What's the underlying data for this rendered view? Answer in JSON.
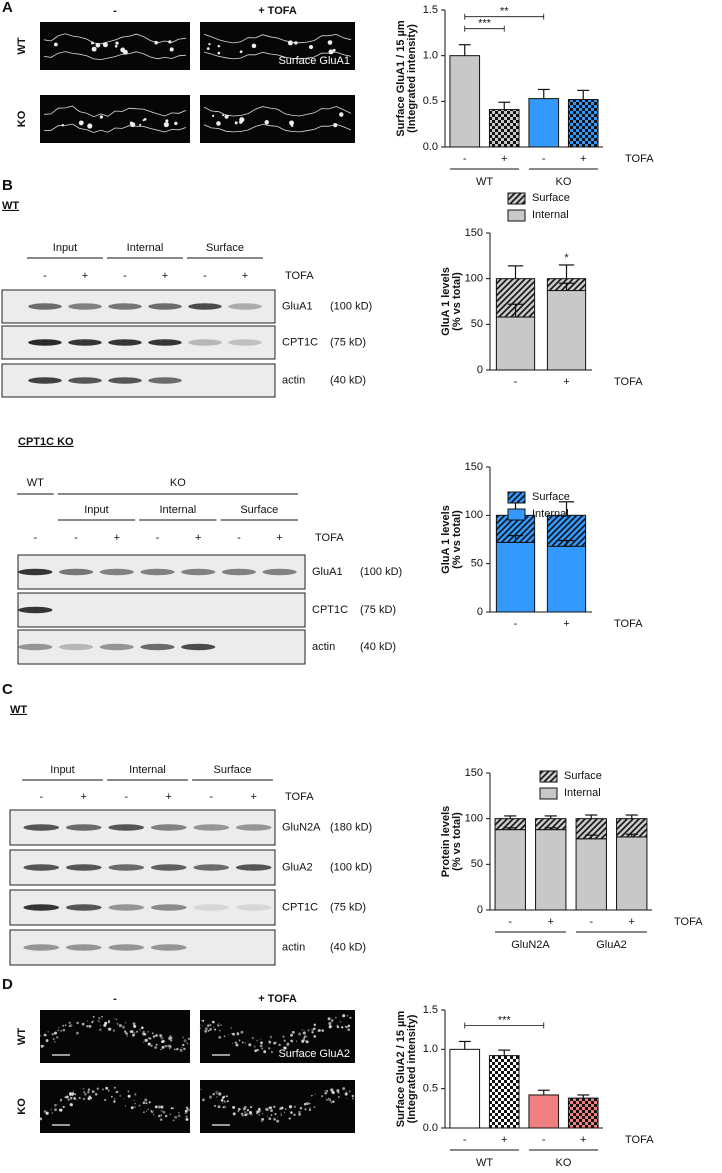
{
  "panels": {
    "A": {
      "letter": "A",
      "columns": [
        "-",
        "+ TOFA"
      ],
      "rows": [
        "WT",
        "KO"
      ],
      "overlay": "Surface GluA1"
    },
    "B": {
      "letter": "B",
      "wt": {
        "title": "WT",
        "groups": [
          "Input",
          "Internal",
          "Surface"
        ],
        "lanes": [
          "-",
          "+",
          "-",
          "+",
          "-",
          "+"
        ],
        "treatment": "TOFA",
        "bands": [
          [
            "GluA1",
            "(100 kD)"
          ],
          [
            "CPT1C",
            "(75 kD)"
          ],
          [
            "actin",
            "(40 kD)"
          ]
        ]
      },
      "ko": {
        "title": "CPT1C KO",
        "genotypes": [
          "WT",
          "KO"
        ],
        "groups": [
          "Input",
          "Internal",
          "Surface"
        ],
        "lanes": [
          "-",
          "-",
          "+",
          "-",
          "+",
          "-",
          "+"
        ],
        "treatment": "TOFA",
        "bands": [
          [
            "GluA1",
            "(100 kD)"
          ],
          [
            "CPT1C",
            "(75 kD)"
          ],
          [
            "actin",
            "(40 kD)"
          ]
        ]
      }
    },
    "C": {
      "letter": "C",
      "title": "WT",
      "groups": [
        "Input",
        "Internal",
        "Surface"
      ],
      "lanes": [
        "-",
        "+",
        "-",
        "+",
        "-",
        "+"
      ],
      "treatment": "TOFA",
      "bands": [
        [
          "GluN2A",
          "(180 kD)"
        ],
        [
          "GluA2",
          "(100 kD)"
        ],
        [
          "CPT1C",
          "(75 kD)"
        ],
        [
          "actin",
          "(40 kD)"
        ]
      ]
    },
    "D": {
      "letter": "D",
      "columns": [
        "-",
        "+ TOFA"
      ],
      "rows": [
        "WT",
        "KO"
      ],
      "overlay": "Surface GluA2"
    }
  },
  "chart_data": [
    {
      "type": "bar",
      "ylabel": [
        "Surface GluA1 / 15 µm",
        "(Integrated intensity)"
      ],
      "categories": [
        "-",
        "+",
        "-",
        "+"
      ],
      "groups": [
        "WT",
        "KO"
      ],
      "xlabel": "TOFA",
      "values": [
        1.0,
        0.41,
        0.53,
        0.52
      ],
      "errors": [
        0.12,
        0.08,
        0.1,
        0.1
      ],
      "colors": [
        "#c8c8c8",
        "#c8c8c8",
        "#3399ff",
        "#3399ff"
      ],
      "patterns": [
        "solid",
        "checker",
        "solid",
        "checker"
      ],
      "ylim": [
        0,
        1.5
      ],
      "yticks": [
        {
          "value": 0,
          "label": "0.0"
        },
        0.5,
        {
          "value": 1,
          "label": "1.0"
        },
        1.5
      ],
      "annotations": [
        {
          "text": "***",
          "bars": [
            0,
            1
          ]
        },
        {
          "text": "**",
          "bars": [
            0,
            2
          ]
        }
      ]
    },
    {
      "type": "stacked_bar",
      "ylabel": [
        "GluA 1 levels",
        "(% vs total)"
      ],
      "categories": [
        "-",
        "+"
      ],
      "xlabel": "TOFA",
      "series": [
        {
          "name": "Internal",
          "color": "#c8c8c8",
          "pattern": "solid",
          "values": [
            58,
            87
          ],
          "errors": [
            14,
            8
          ]
        },
        {
          "name": "Surface",
          "color": "#c8c8c8",
          "pattern": "hatch",
          "values": [
            42,
            13
          ],
          "errors": [
            14,
            15
          ]
        }
      ],
      "ylim": [
        0,
        150
      ],
      "yticks": [
        0,
        50,
        100,
        150
      ],
      "annotations": [
        {
          "text": "*",
          "bars": [
            1
          ]
        }
      ]
    },
    {
      "type": "stacked_bar",
      "ylabel": [
        "GluA 1 levels",
        "(% vs total)"
      ],
      "categories": [
        "-",
        "+"
      ],
      "xlabel": "TOFA",
      "series": [
        {
          "name": "Internal",
          "color": "#3399ff",
          "pattern": "solid",
          "values": [
            72,
            68
          ],
          "errors": [
            7,
            6
          ]
        },
        {
          "name": "Surface",
          "color": "#3399ff",
          "pattern": "hatch",
          "values": [
            28,
            32
          ],
          "errors": [
            16,
            14
          ]
        }
      ],
      "ylim": [
        0,
        150
      ],
      "yticks": [
        0,
        50,
        100,
        150
      ]
    },
    {
      "type": "stacked_bar",
      "ylabel": [
        "Protein levels",
        "(% vs total)"
      ],
      "categories": [
        "-",
        "+",
        "-",
        "+"
      ],
      "groups": [
        "GluN2A",
        "GluA2"
      ],
      "xlabel": "TOFA",
      "series": [
        {
          "name": "Internal",
          "color": "#c8c8c8",
          "pattern": "solid",
          "values": [
            88,
            88,
            78,
            80
          ],
          "errors": [
            2,
            2,
            4,
            3
          ]
        },
        {
          "name": "Surface",
          "color": "#c8c8c8",
          "pattern": "hatch",
          "values": [
            12,
            12,
            22,
            20
          ],
          "errors": [
            3,
            3,
            4,
            4
          ]
        }
      ],
      "ylim": [
        0,
        150
      ],
      "yticks": [
        0,
        50,
        100,
        150
      ]
    },
    {
      "type": "bar",
      "ylabel": [
        "Surface GluA2 / 15 µm",
        "(Integrated intensity)"
      ],
      "categories": [
        "-",
        "+",
        "-",
        "+"
      ],
      "groups": [
        "WT",
        "KO"
      ],
      "xlabel": "TOFA",
      "values": [
        1.0,
        0.92,
        0.42,
        0.38
      ],
      "errors": [
        0.1,
        0.07,
        0.06,
        0.04
      ],
      "colors": [
        "#ffffff",
        "#ffffff",
        "#f08080",
        "#f08080"
      ],
      "patterns": [
        "solid",
        "checker",
        "solid",
        "checker"
      ],
      "ylim": [
        0,
        1.5
      ],
      "yticks": [
        {
          "value": 0,
          "label": "0.0"
        },
        0.5,
        {
          "value": 1,
          "label": "1.0"
        },
        1.5
      ],
      "annotations": [
        {
          "text": "***",
          "bars": [
            0,
            2
          ]
        }
      ]
    }
  ]
}
